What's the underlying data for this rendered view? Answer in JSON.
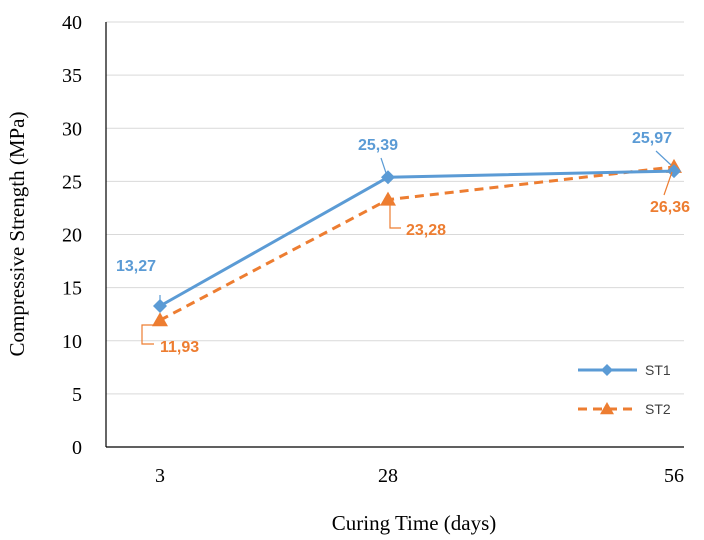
{
  "chart_data": {
    "type": "line",
    "x": [
      "3",
      "28",
      "56"
    ],
    "xlabel": "Curing Time (days)",
    "ylabel": "Compressive Strength (MPa)",
    "ylim": [
      0,
      40
    ],
    "yticks": [
      "0",
      "5",
      "10",
      "15",
      "20",
      "25",
      "30",
      "35",
      "40"
    ],
    "grid": true,
    "legend_position": "bottom-right",
    "series": [
      {
        "name": "ST1",
        "values": [
          13.27,
          25.39,
          25.97
        ],
        "labels": [
          "13,27",
          "25,39",
          "25,97"
        ],
        "color": "#5b9bd5",
        "marker": "diamond",
        "line_style": "solid"
      },
      {
        "name": "ST2",
        "values": [
          11.93,
          23.28,
          26.36
        ],
        "labels": [
          "11,93",
          "23,28",
          "26,36"
        ],
        "color": "#ed7d31",
        "marker": "triangle",
        "line_style": "dashed"
      }
    ]
  }
}
